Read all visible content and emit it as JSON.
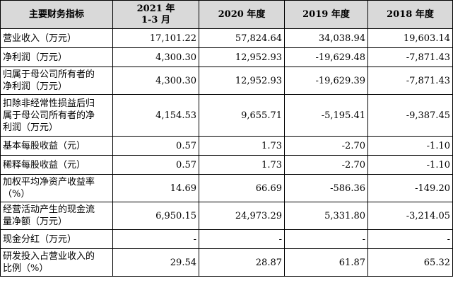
{
  "header": {
    "col0": "主要财务指标",
    "col1_line1": "2021 年",
    "col1_line2": "1-3 月",
    "col2": "2020 年度",
    "col3": "2019 年度",
    "col4": "2018 年度"
  },
  "rows": [
    {
      "label_lines": [
        "营业收入（万元）"
      ],
      "values": [
        "17,101.22",
        "57,824.64",
        "34,038.94",
        "19,603.14"
      ]
    },
    {
      "label_lines": [
        "净利润（万元）"
      ],
      "values": [
        "4,300.30",
        "12,952.93",
        "-19,629.48",
        "-7,871.43"
      ]
    },
    {
      "label_lines": [
        "归属于母公司所有者的",
        "净利润（万元）"
      ],
      "values": [
        "4,300.30",
        "12,952.93",
        "-19,629.39",
        "-7,871.43"
      ]
    },
    {
      "label_lines": [
        "扣除非经常性损益后归",
        "属于母公司所有者的净",
        "利润（万元）"
      ],
      "values": [
        "4,154.53",
        "9,655.71",
        "-5,195.41",
        "-9,387.45"
      ]
    },
    {
      "label_lines": [
        "基本每股收益（元）"
      ],
      "values": [
        "0.57",
        "1.73",
        "-2.70",
        "-1.10"
      ]
    },
    {
      "label_lines": [
        "稀释每股收益（元）"
      ],
      "values": [
        "0.57",
        "1.73",
        "-2.70",
        "-1.10"
      ]
    },
    {
      "label_lines": [
        "加权平均净资产收益率",
        "（%）"
      ],
      "values": [
        "14.69",
        "66.69",
        "-586.36",
        "-149.20"
      ]
    },
    {
      "label_lines": [
        "经营活动产生的现金流",
        "量净额（万元）"
      ],
      "values": [
        "6,950.15",
        "24,973.29",
        "5,331.80",
        "-3,214.05"
      ]
    },
    {
      "label_lines": [
        "现金分红（万元）"
      ],
      "values": [
        "-",
        "-",
        "-",
        "-"
      ]
    },
    {
      "label_lines": [
        "研发投入占营业收入的",
        "比例（%）"
      ],
      "values": [
        "29.54",
        "28.87",
        "61.87",
        "65.32"
      ]
    }
  ]
}
